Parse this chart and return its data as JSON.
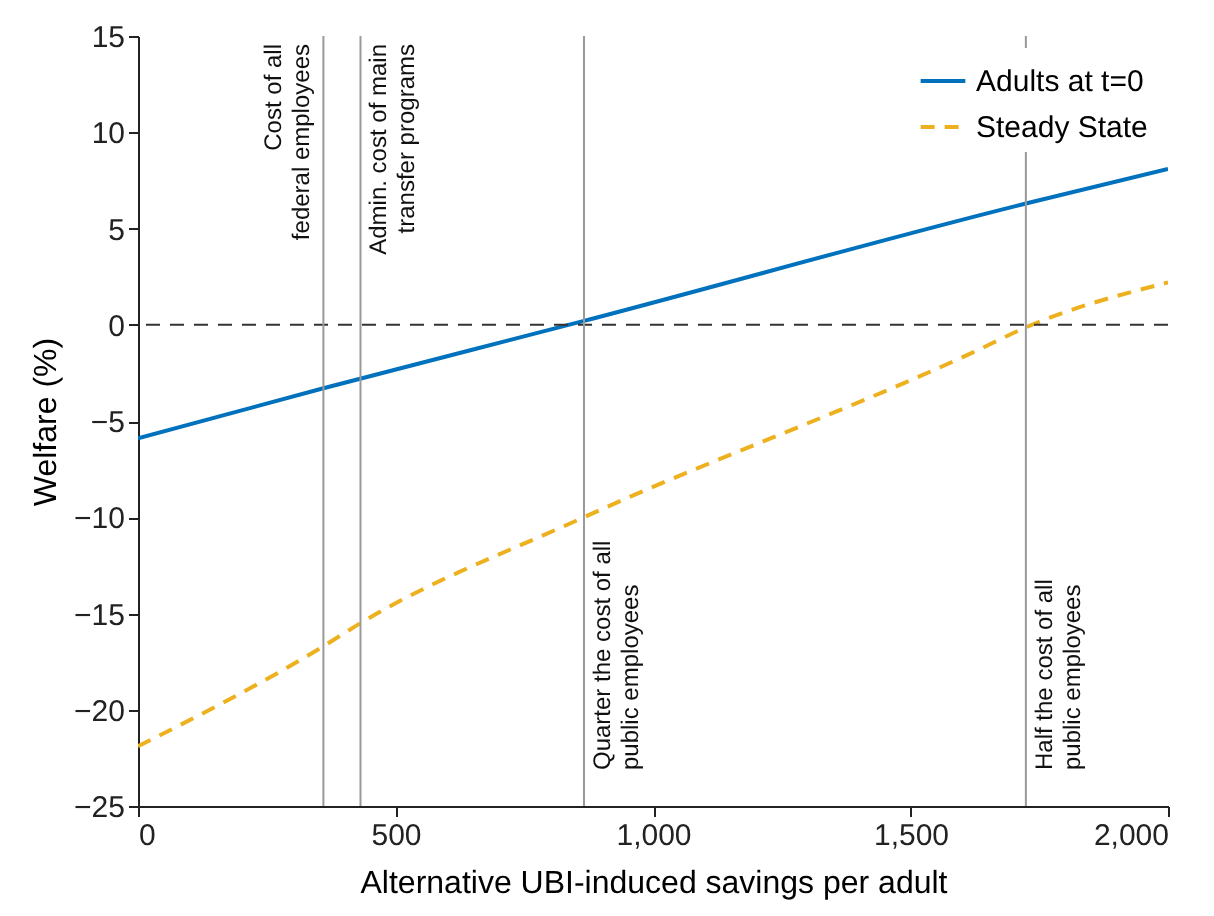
{
  "chart_data": {
    "type": "line",
    "xlabel": "Alternative UBI-induced savings per adult",
    "ylabel": "Welfare (%)",
    "xlim": [
      0,
      2000
    ],
    "xticks": [
      0,
      500,
      {
        "value": 1000,
        "label": "1,000"
      },
      {
        "value": 1500,
        "label": "1,500"
      },
      {
        "value": 2000,
        "label": "2,000"
      }
    ],
    "ylim": [
      -25,
      15
    ],
    "yticks": [
      -25,
      -20,
      -15,
      -10,
      -5,
      0,
      5,
      10,
      15
    ],
    "grid": false,
    "legend": "top right",
    "series": [
      {
        "name": "Adults at t=0",
        "color": "#0072bd",
        "line_style": "solid",
        "x": [
          0,
          360,
          866,
          1724,
          2000
        ],
        "values": [
          -5.9,
          -3.3,
          0.2,
          6.3,
          8.1
        ]
      },
      {
        "name": "Steady State",
        "color": "#edb120",
        "line_style": "dashed",
        "x": [
          0,
          360,
          432,
          866,
          1616,
          1736,
          2000
        ],
        "values": [
          -21.9,
          -16.7,
          -15.5,
          -10.0,
          -1.5,
          0,
          2.2
        ]
      }
    ],
    "ref_lines": [
      {
        "axis": "y",
        "value": 0,
        "color": "#333333",
        "line_style": "dashed"
      },
      {
        "axis": "x",
        "value": 360,
        "label": "Cost of all\nfederal employees",
        "color": "#999999",
        "line_style": "solid"
      },
      {
        "axis": "x",
        "value": 432,
        "label": "Admin. cost of main\ntransfer programs",
        "color": "#999999",
        "line_style": "solid"
      },
      {
        "axis": "x",
        "value": 866,
        "label": "Quarter the cost of all\npublic employees",
        "color": "#999999",
        "line_style": "solid"
      },
      {
        "axis": "x",
        "value": 1724,
        "label": "Half the cost of all\npublic employees",
        "color": "#999999",
        "line_style": "solid"
      }
    ]
  }
}
